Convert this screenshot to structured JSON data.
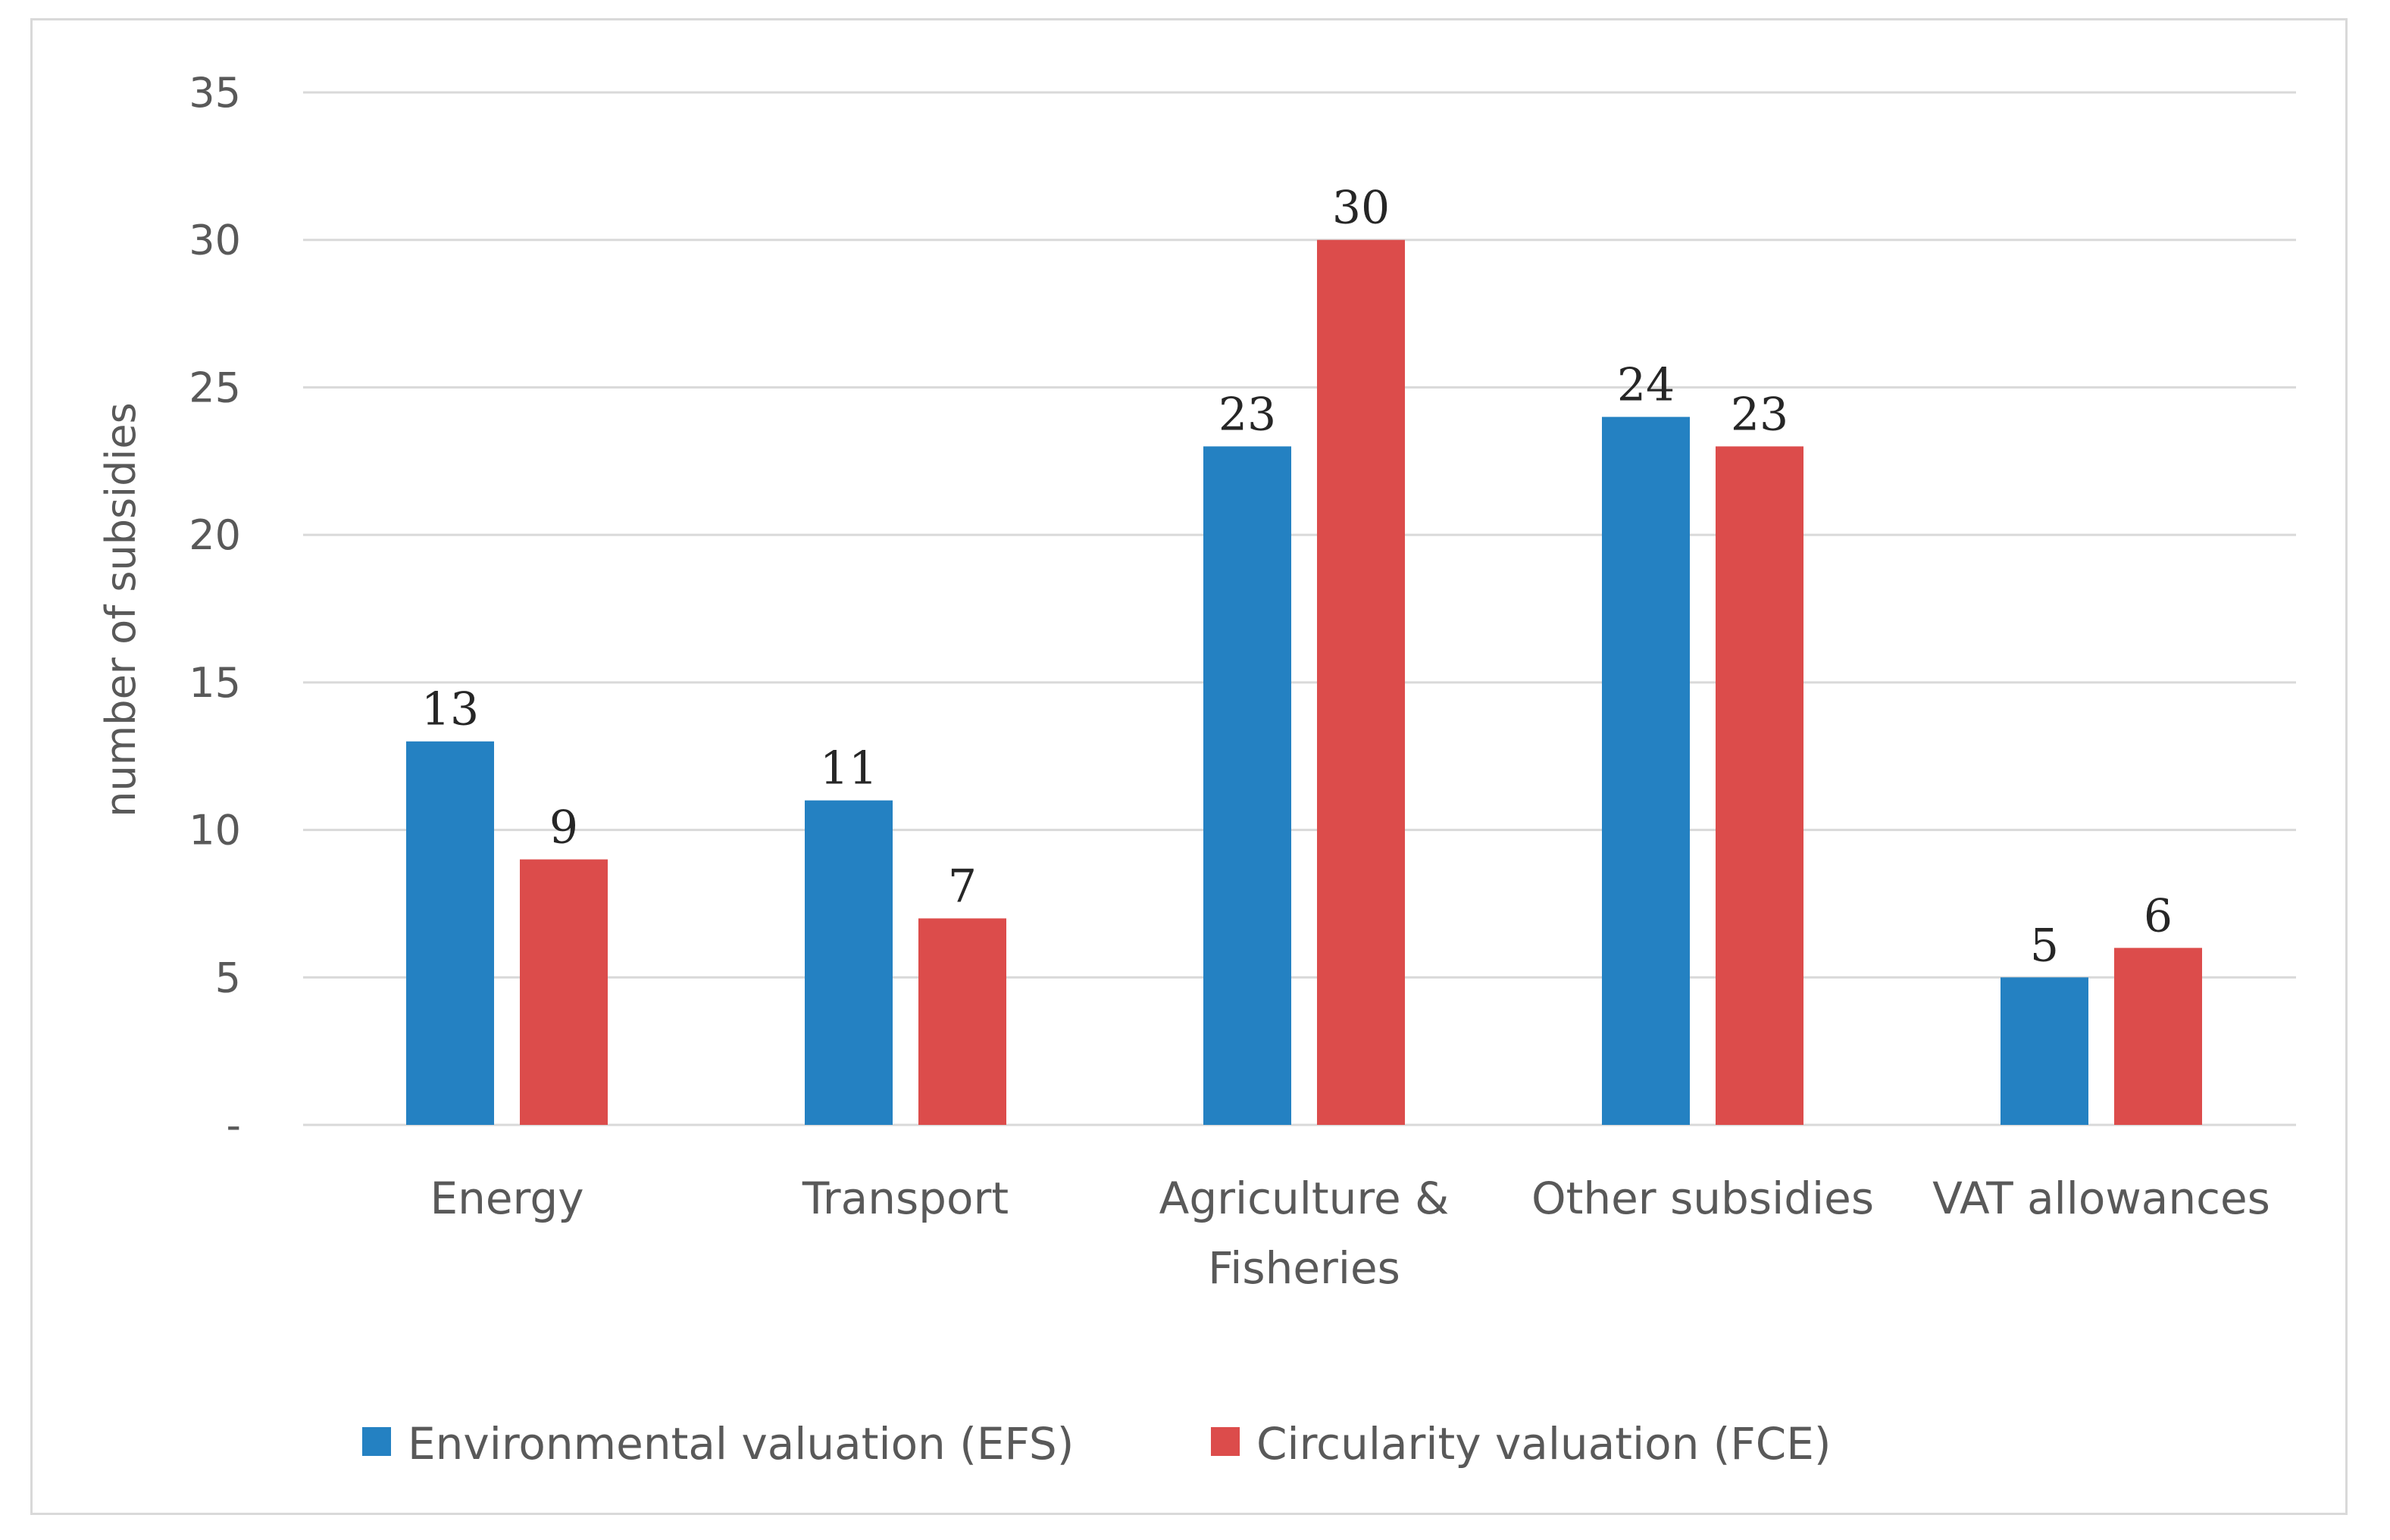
{
  "chart_data": {
    "type": "bar",
    "title": "",
    "xlabel": "",
    "ylabel": "number of subsidies",
    "ylim": [
      0,
      35
    ],
    "yticks": [
      0,
      5,
      10,
      15,
      20,
      25,
      30,
      35
    ],
    "ytick_labels": [
      "-",
      "5",
      "10",
      "15",
      "20",
      "25",
      "30",
      "35"
    ],
    "grid": true,
    "legend_position": "bottom",
    "categories": [
      [
        "Energy"
      ],
      [
        "Transport"
      ],
      [
        "Agriculture &",
        "Fisheries"
      ],
      [
        "Other subsidies"
      ],
      [
        "VAT allowances"
      ]
    ],
    "series": [
      {
        "name": "Environmental valuation (EFS)",
        "color": "#2481c2",
        "values": [
          13,
          11,
          23,
          24,
          5
        ]
      },
      {
        "name": "Circularity valuation (FCE)",
        "color": "#dc4c4b",
        "values": [
          9,
          7,
          30,
          23,
          6
        ]
      }
    ]
  }
}
